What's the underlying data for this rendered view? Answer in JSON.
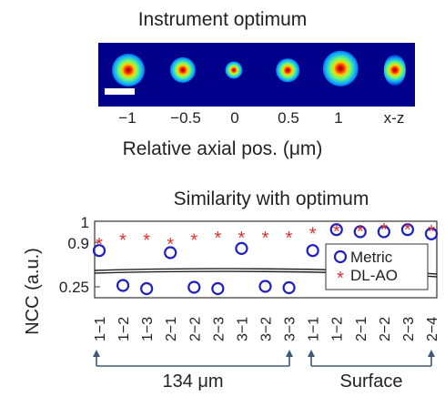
{
  "psf_panel": {
    "title": "Instrument optimum",
    "tiles": [
      {
        "label": "−1",
        "size": 1.0
      },
      {
        "label": "−0.5",
        "size": 0.7
      },
      {
        "label": "0",
        "size": 0.35
      },
      {
        "label": "0.5",
        "size": 0.6
      },
      {
        "label": "1",
        "size": 1.1
      },
      {
        "label": "x-z",
        "size": 0.55
      }
    ],
    "xlabel": "Relative axial pos. (μm)"
  },
  "chart_data": {
    "type": "scatter",
    "title": "Similarity with optimum",
    "ylabel": "NCC (a.u.)",
    "ylim": [
      0,
      1
    ],
    "yticks": [
      "0.25",
      "0.9",
      "1"
    ],
    "categories": [
      "1−1",
      "1−2",
      "1−3",
      "2−1",
      "2−2",
      "2−3",
      "3−1",
      "3−2",
      "3−3",
      "1−1",
      "1−2",
      "2−1",
      "2−2",
      "2−3",
      "2−4"
    ],
    "series": [
      {
        "name": "Metric",
        "marker": "circle",
        "color": "#1f1fbf",
        "values": [
          0.86,
          0.28,
          0.21,
          0.85,
          0.24,
          0.21,
          0.87,
          0.26,
          0.23,
          0.86,
          0.96,
          0.95,
          0.95,
          0.96,
          0.94
        ]
      },
      {
        "name": "DL-AO",
        "marker": "asterisk",
        "color": "#e03030",
        "values": [
          0.9,
          0.92,
          0.92,
          0.9,
          0.92,
          0.93,
          0.93,
          0.93,
          0.93,
          0.95,
          0.96,
          0.96,
          0.97,
          0.97,
          0.96
        ]
      }
    ],
    "axis_break": true,
    "legend_position": "right",
    "groups": [
      {
        "label": "134 μm",
        "from": 0,
        "to": 8
      },
      {
        "label": "Surface",
        "from": 9,
        "to": 14
      }
    ]
  }
}
